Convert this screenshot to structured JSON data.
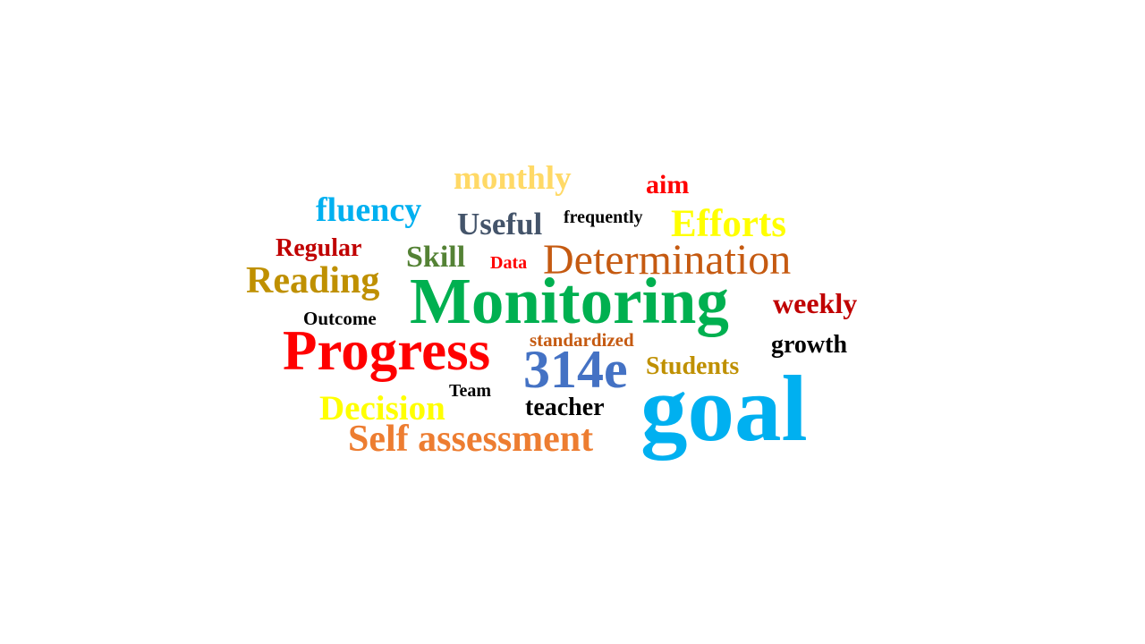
{
  "words": {
    "monthly": {
      "text": "monthly",
      "color": "#FFD966"
    },
    "aim": {
      "text": "aim",
      "color": "#FF0000"
    },
    "fluency": {
      "text": "fluency",
      "color": "#00B0F0"
    },
    "useful": {
      "text": "Useful",
      "color": "#44546A"
    },
    "frequently": {
      "text": "frequently",
      "color": "#000000"
    },
    "efforts": {
      "text": "Efforts",
      "color": "#FFFF00"
    },
    "regular": {
      "text": "Regular",
      "color": "#C00000"
    },
    "skill": {
      "text": "Skill",
      "color": "#548235"
    },
    "data": {
      "text": "Data",
      "color": "#FF0000"
    },
    "determination": {
      "text": "Determination",
      "color": "#C55A11"
    },
    "reading": {
      "text": "Reading",
      "color": "#BF9000"
    },
    "monitoring": {
      "text": "Monitoring",
      "color": "#00B050"
    },
    "weekly": {
      "text": "weekly",
      "color": "#C00000"
    },
    "outcome": {
      "text": "Outcome",
      "color": "#000000"
    },
    "progress": {
      "text": "Progress",
      "color": "#FF0000"
    },
    "standardized": {
      "text": "standardized",
      "color": "#C55A11"
    },
    "growth": {
      "text": "growth",
      "color": "#000000"
    },
    "n314e": {
      "text": "314e",
      "color": "#4472C4"
    },
    "students": {
      "text": "Students",
      "color": "#BF9000"
    },
    "team": {
      "text": "Team",
      "color": "#000000"
    },
    "goal": {
      "text": "goal",
      "color": "#00B0F0"
    },
    "decision": {
      "text": "Decision",
      "color": "#FFFF00"
    },
    "teacher": {
      "text": "teacher",
      "color": "#000000"
    },
    "self_assessment": {
      "text": "Self assessment",
      "color": "#ED7D31"
    }
  }
}
